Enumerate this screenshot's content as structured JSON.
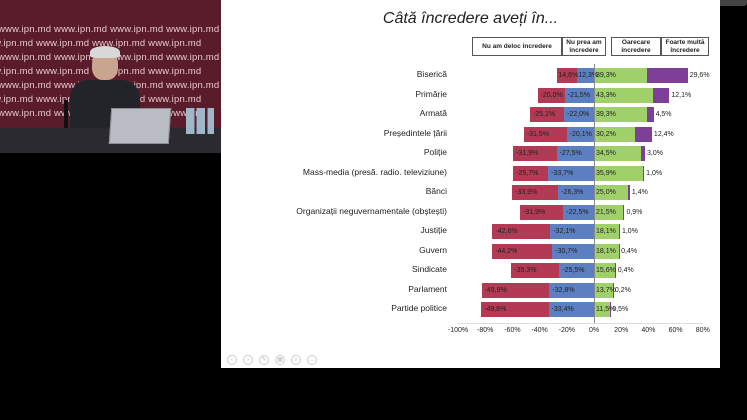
{
  "video": {
    "watermark": "www.ipn.md",
    "watermark_rows": [
      "www.ipn.md www.ipn.md www.ipn.md www.ipn.md",
      "www.ipn.md www.ipn.md www.ipn.md www.ipn.md",
      "www.ipn.md www.ipn.md www.ipn.md www.ipn.md",
      "www.ipn.md www.ipn.md www.ipn.md www.ipn.md",
      "www.ipn.md www.ipn.md www.ipn.md www.ipn.md",
      "www.ipn.md www.ipn.md www.ipn.md www.ipn.md",
      "www.ipn.md www.ipn.md www.ipn.md www.or"
    ]
  },
  "slide": {
    "title": "Câtă încredere aveți în...",
    "legend": [
      "Nu am deloc încredere",
      "Nu prea am încredere",
      "Oarecare încredere",
      "Foarte multă încredere"
    ]
  },
  "chart_data": {
    "type": "bar",
    "orientation": "horizontal-diverging",
    "title": "Câtă încredere aveți în...",
    "categories": [
      "Biserică",
      "Primărie",
      "Armată",
      "Președintele țării",
      "Poliție",
      "Mass-media (presă. radio. televiziune)",
      "Bănci",
      "Organizații neguvernamentale (obștești)",
      "Justiție",
      "Guvern",
      "Sindicate",
      "Parlament",
      "Partide politice"
    ],
    "series": [
      {
        "name": "Nu am deloc încredere",
        "color": "#b23a55",
        "values": [
          -14.6,
          -20.0,
          -25.1,
          -31.5,
          -31.9,
          -25.7,
          -33.9,
          -31.9,
          -42.6,
          -44.2,
          -35.3,
          -49.9,
          -49.6
        ],
        "labels": [
          "14,6%",
          "-20,0%",
          "-25,1%",
          "-31,5%",
          "-31,9%",
          "-25,7%",
          "-33,9%",
          "-31,9%",
          "-42,6%",
          "-44,2%",
          "-35,3%",
          "-49,9%",
          "-49,6%"
        ]
      },
      {
        "name": "Nu prea am încredere",
        "color": "#5b7fc0",
        "values": [
          -12.3,
          -21.5,
          -22.0,
          -20.1,
          -27.5,
          -33.7,
          -26.3,
          -22.5,
          -32.1,
          -30.7,
          -25.5,
          -32.8,
          -33.4
        ],
        "labels": [
          "12,3%",
          "-21,5%",
          "-22,0%",
          "-20,1%",
          "-27,5%",
          "-33,7%",
          "-26,3%",
          "-22,5%",
          "-32,1%",
          "-30,7%",
          "-25,5%",
          "-32,8%",
          "-33,4%"
        ]
      },
      {
        "name": "Oarecare încredere",
        "color": "#9fd06a",
        "values": [
          39.3,
          43.3,
          39.3,
          30.2,
          34.5,
          35.9,
          25.0,
          21.5,
          18.1,
          18.1,
          15.6,
          13.7,
          11.5
        ],
        "labels": [
          "39,3%",
          "43,3%",
          "39,3%",
          "30,2%",
          "34,5%",
          "35,9%",
          "25,0%",
          "21,5%",
          "18,1%",
          "18,1%",
          "15,6%",
          "13,7%",
          "11,5%"
        ]
      },
      {
        "name": "Foarte multă încredere",
        "color": "#7e3f98",
        "values": [
          29.6,
          12.1,
          4.5,
          12.4,
          3.0,
          1.0,
          1.4,
          0.9,
          1.0,
          0.4,
          0.4,
          0.2,
          0.5
        ],
        "labels": [
          "29,6%",
          "12,1%",
          "4,5%",
          "12,4%",
          "3,0%",
          "1,0%",
          "1,4%",
          "0,9%",
          "1,0%",
          "0,4%",
          "0,4%",
          "0,2%",
          "0,5%"
        ]
      }
    ],
    "xlim": [
      -100,
      80
    ],
    "xticks": [
      "-100%",
      "-80%",
      "-60%",
      "-40%",
      "-20%",
      "0%",
      "20%",
      "40%",
      "60%",
      "80%"
    ]
  }
}
